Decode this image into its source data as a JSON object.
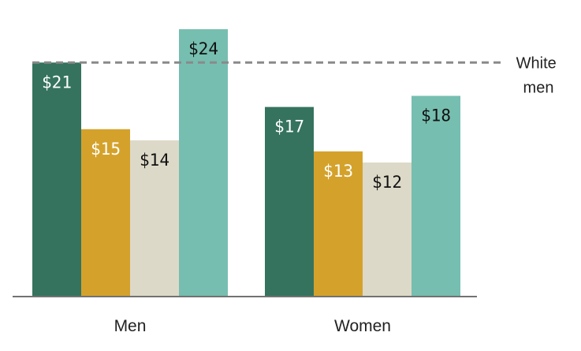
{
  "chart_data": {
    "type": "bar",
    "categories": [
      "Men",
      "Women"
    ],
    "series": [
      {
        "values": [
          21,
          17
        ],
        "labels": [
          "$21",
          "$17"
        ],
        "color": "#35735f",
        "label_color": "#ffffff"
      },
      {
        "values": [
          15,
          13
        ],
        "labels": [
          "$15",
          "$13"
        ],
        "color": "#d4a22b",
        "label_color": "#ffffff"
      },
      {
        "values": [
          14,
          12
        ],
        "labels": [
          "$14",
          "$12"
        ],
        "color": "#ddd9c8",
        "label_color": "#111111"
      },
      {
        "values": [
          24,
          18
        ],
        "labels": [
          "$24",
          "$18"
        ],
        "color": "#76beb0",
        "label_color": "#111111"
      }
    ],
    "reference_line": {
      "value": 21,
      "label_lines": [
        "White",
        "men"
      ],
      "color": "#8a8a8a",
      "style": "dashed"
    },
    "ylim": [
      0,
      24.5
    ],
    "title": "",
    "xlabel": "",
    "ylabel": "",
    "grid": false,
    "legend": "none"
  }
}
